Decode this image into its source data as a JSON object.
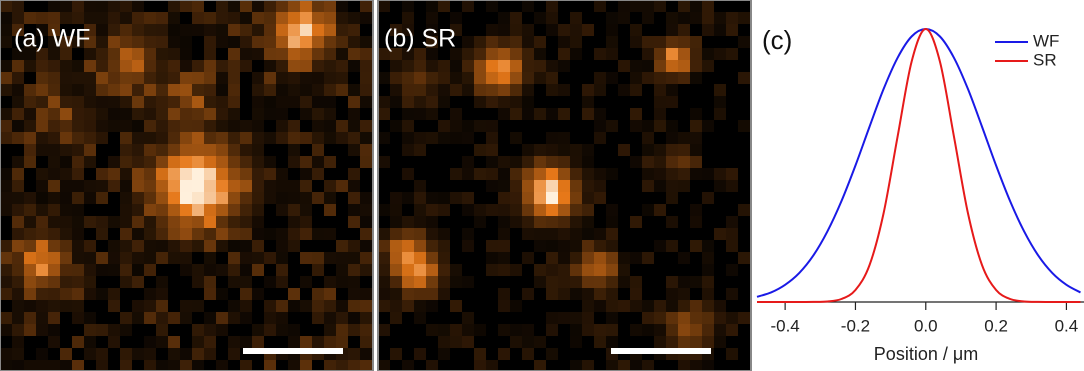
{
  "panels": {
    "a": {
      "label": "(a) WF"
    },
    "b": {
      "label": "(b) SR"
    }
  },
  "chart_data": {
    "type": "line",
    "panel_label": "(c)",
    "x_label": "Position / μm",
    "x": [
      -0.48,
      -0.44,
      -0.4,
      -0.36,
      -0.32,
      -0.28,
      -0.24,
      -0.2,
      -0.16,
      -0.12,
      -0.08,
      -0.04,
      0,
      0.04,
      0.08,
      0.12,
      0.16,
      0.2,
      0.24,
      0.28,
      0.32,
      0.36,
      0.4,
      0.44
    ],
    "series": [
      {
        "name": "WF",
        "color": "#1a1ae6",
        "values": [
          0.019,
          0.035,
          0.063,
          0.106,
          0.17,
          0.258,
          0.369,
          0.5,
          0.642,
          0.78,
          0.895,
          0.973,
          1,
          0.973,
          0.895,
          0.78,
          0.642,
          0.5,
          0.369,
          0.258,
          0.17,
          0.106,
          0.063,
          0.035
        ]
      },
      {
        "name": "SR",
        "color": "#e61a1a",
        "values": [
          0,
          0,
          0,
          0,
          0.0003,
          0.002,
          0.011,
          0.044,
          0.135,
          0.325,
          0.607,
          0.882,
          1,
          0.882,
          0.607,
          0.325,
          0.135,
          0.044,
          0.011,
          0.002,
          0.0003,
          0,
          0,
          0
        ]
      }
    ],
    "xlim": [
      -0.48,
      0.45
    ],
    "ylim": [
      0,
      1
    ],
    "xticks": [
      -0.4,
      -0.2,
      {
        "value": 0,
        "label": "0.0"
      },
      0.2,
      0.4
    ],
    "legend": "upper right"
  }
}
